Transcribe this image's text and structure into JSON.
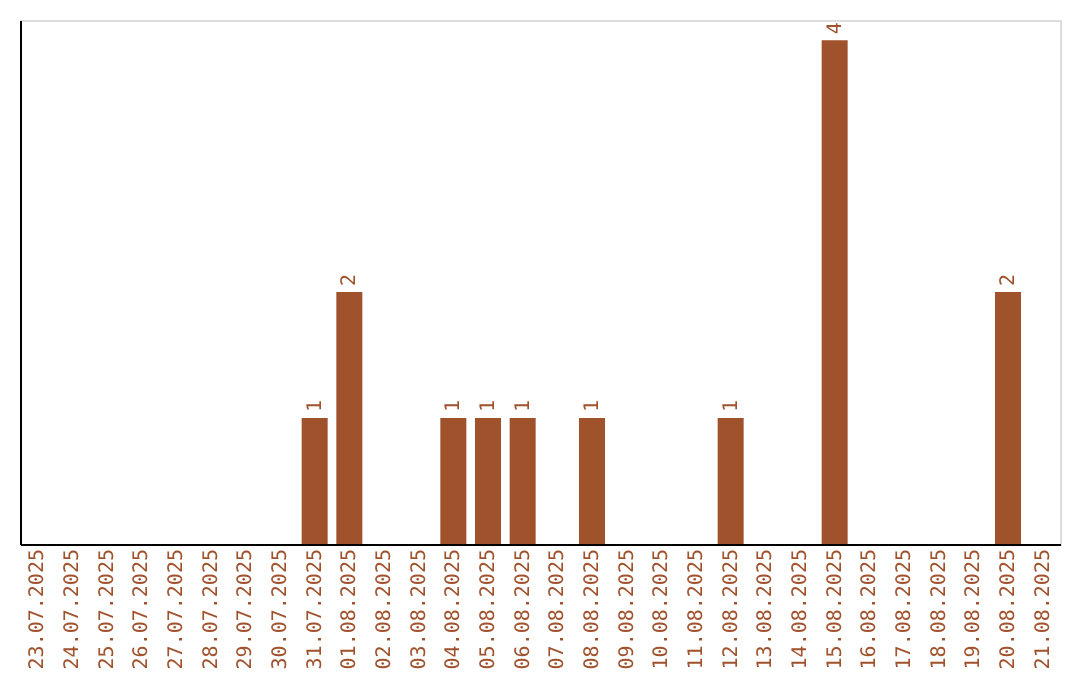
{
  "chart_data": {
    "type": "bar",
    "categories": [
      "23.07.2025",
      "24.07.2025",
      "25.07.2025",
      "26.07.2025",
      "27.07.2025",
      "28.07.2025",
      "29.07.2025",
      "30.07.2025",
      "31.07.2025",
      "01.08.2025",
      "02.08.2025",
      "03.08.2025",
      "04.08.2025",
      "05.08.2025",
      "06.08.2025",
      "07.08.2025",
      "08.08.2025",
      "09.08.2025",
      "10.08.2025",
      "11.08.2025",
      "12.08.2025",
      "13.08.2025",
      "14.08.2025",
      "15.08.2025",
      "16.08.2025",
      "17.08.2025",
      "18.08.2025",
      "19.08.2025",
      "20.08.2025",
      "21.08.2025"
    ],
    "values": [
      0,
      0,
      0,
      0,
      0,
      0,
      0,
      0,
      1,
      2,
      0,
      0,
      1,
      1,
      1,
      0,
      1,
      0,
      0,
      0,
      1,
      0,
      0,
      4,
      0,
      0,
      0,
      0,
      2,
      0
    ],
    "value_labels": [
      null,
      null,
      null,
      null,
      null,
      null,
      null,
      null,
      "1",
      "2",
      null,
      null,
      "1",
      "1",
      "1",
      null,
      "1",
      null,
      null,
      null,
      "1",
      null,
      null,
      "4",
      null,
      null,
      null,
      null,
      "2",
      null
    ],
    "color": "#a0522d",
    "tick_labels": "x",
    "grid": false
  }
}
